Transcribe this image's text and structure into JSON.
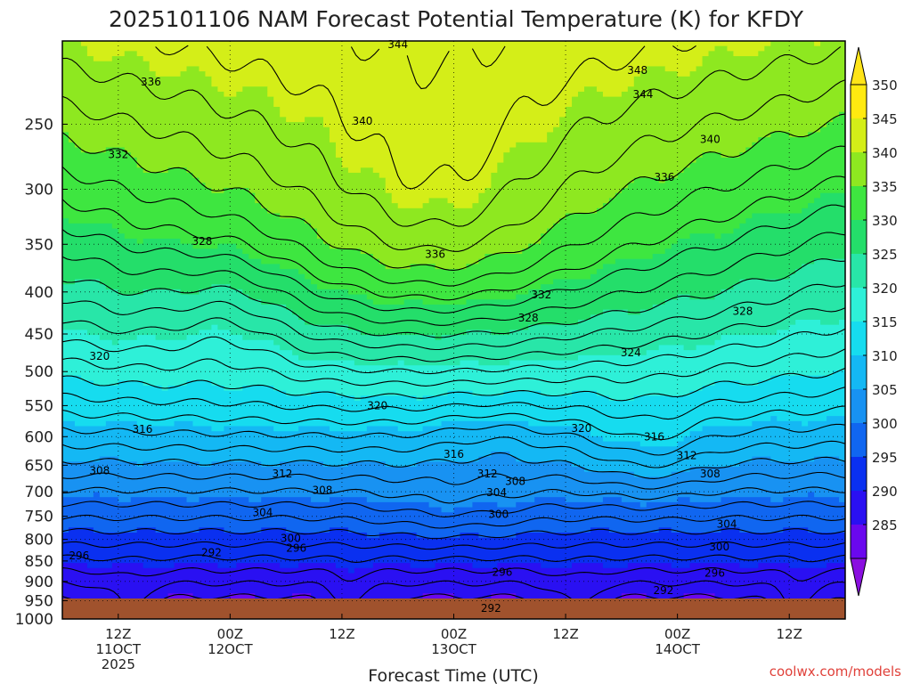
{
  "chart_data": {
    "type": "heatmap",
    "title": "2025101106 NAM Forecast Potential Temperature (K) for KFDY",
    "xlabel": "Forecast Time (UTC)",
    "ylabel": "",
    "credit": "coolwx.com/models",
    "y_axis": {
      "scale": "pressure-log",
      "units": "hPa",
      "ticks": [
        "250",
        "300",
        "350",
        "400",
        "450",
        "500",
        "550",
        "600",
        "650",
        "700",
        "750",
        "800",
        "850",
        "900",
        "950",
        "1000"
      ]
    },
    "x_axis": {
      "ticks": [
        {
          "line1": "12Z",
          "line2": "11OCT",
          "line3": "2025",
          "hour": 6
        },
        {
          "line1": "00Z",
          "line2": "12OCT",
          "line3": "",
          "hour": 18
        },
        {
          "line1": "12Z",
          "line2": "",
          "line3": "",
          "hour": 30
        },
        {
          "line1": "00Z",
          "line2": "13OCT",
          "line3": "",
          "hour": 42
        },
        {
          "line1": "12Z",
          "line2": "",
          "line3": "",
          "hour": 54
        },
        {
          "line1": "00Z",
          "line2": "14OCT",
          "line3": "",
          "hour": 66
        },
        {
          "line1": "12Z",
          "line2": "",
          "line3": "",
          "hour": 78
        }
      ],
      "range_hours": [
        0,
        84
      ]
    },
    "colorbar": {
      "ticks": [
        "350",
        "345",
        "340",
        "335",
        "330",
        "325",
        "320",
        "315",
        "310",
        "305",
        "300",
        "295",
        "290",
        "285"
      ],
      "levels": [
        280,
        285,
        290,
        295,
        300,
        305,
        310,
        315,
        320,
        325,
        330,
        335,
        340,
        345,
        350,
        355
      ],
      "colors": [
        "#8a0fe0",
        "#6a08ee",
        "#2a10f2",
        "#0a30f0",
        "#1066f0",
        "#1892f2",
        "#14b8f4",
        "#16dcef",
        "#2ef0d8",
        "#28e6a8",
        "#24de6a",
        "#3ee640",
        "#8ee820",
        "#d4ee18",
        "#ffea10",
        "#ffe418"
      ],
      "extend": "both"
    },
    "contour_labels": [
      {
        "text": "344",
        "hour": 36,
        "p": 200
      },
      {
        "text": "348",
        "hour": 61.7,
        "p": 215
      },
      {
        "text": "344",
        "hour": 62.3,
        "p": 230
      },
      {
        "text": "336",
        "hour": 9.5,
        "p": 222
      },
      {
        "text": "340",
        "hour": 32.2,
        "p": 248
      },
      {
        "text": "340",
        "hour": 69.5,
        "p": 261
      },
      {
        "text": "332",
        "hour": 6,
        "p": 272
      },
      {
        "text": "336",
        "hour": 64.6,
        "p": 290
      },
      {
        "text": "328",
        "hour": 15,
        "p": 347
      },
      {
        "text": "336",
        "hour": 40,
        "p": 360
      },
      {
        "text": "332",
        "hour": 51.4,
        "p": 403
      },
      {
        "text": "328",
        "hour": 50,
        "p": 430
      },
      {
        "text": "328",
        "hour": 73,
        "p": 422
      },
      {
        "text": "324",
        "hour": 61,
        "p": 474
      },
      {
        "text": "320",
        "hour": 4,
        "p": 479
      },
      {
        "text": "320",
        "hour": 33.8,
        "p": 550
      },
      {
        "text": "320",
        "hour": 55.7,
        "p": 586
      },
      {
        "text": "316",
        "hour": 8.6,
        "p": 588
      },
      {
        "text": "316",
        "hour": 63.5,
        "p": 600
      },
      {
        "text": "316",
        "hour": 42,
        "p": 630
      },
      {
        "text": "312",
        "hour": 67,
        "p": 633
      },
      {
        "text": "308",
        "hour": 4,
        "p": 660
      },
      {
        "text": "312",
        "hour": 23.6,
        "p": 666
      },
      {
        "text": "312",
        "hour": 45.6,
        "p": 666
      },
      {
        "text": "308",
        "hour": 69.5,
        "p": 666
      },
      {
        "text": "308",
        "hour": 48.6,
        "p": 680
      },
      {
        "text": "308",
        "hour": 27.9,
        "p": 697
      },
      {
        "text": "304",
        "hour": 46.6,
        "p": 702
      },
      {
        "text": "304",
        "hour": 21.5,
        "p": 742
      },
      {
        "text": "300",
        "hour": 46.8,
        "p": 746
      },
      {
        "text": "304",
        "hour": 71.3,
        "p": 767
      },
      {
        "text": "300",
        "hour": 24.5,
        "p": 798
      },
      {
        "text": "296",
        "hour": 25.1,
        "p": 820
      },
      {
        "text": "300",
        "hour": 70.5,
        "p": 817
      },
      {
        "text": "292",
        "hour": 16,
        "p": 830
      },
      {
        "text": "296",
        "hour": 1.8,
        "p": 838
      },
      {
        "text": "296",
        "hour": 47.2,
        "p": 877
      },
      {
        "text": "296",
        "hour": 70,
        "p": 879
      },
      {
        "text": "292",
        "hour": 64.5,
        "p": 923
      },
      {
        "text": "292",
        "hour": 46,
        "p": 970
      }
    ]
  }
}
